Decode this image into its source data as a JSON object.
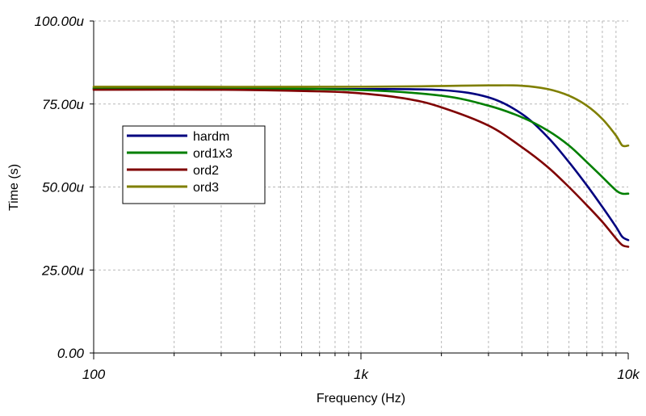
{
  "chart_data": {
    "type": "line",
    "title": "",
    "xlabel": "Frequency (Hz)",
    "ylabel": "Time (s)",
    "x_scale": "log",
    "xlim": [
      100,
      10000
    ],
    "ylim": [
      0,
      100
    ],
    "y_unit": "u",
    "grid": true,
    "legend_placement": "left",
    "x_ticks": [
      {
        "value": 100,
        "label": "100"
      },
      {
        "value": 1000,
        "label": "1k"
      },
      {
        "value": 10000,
        "label": "10k"
      }
    ],
    "y_ticks": [
      {
        "value": 0,
        "label": "0.00"
      },
      {
        "value": 25,
        "label": "25.00u"
      },
      {
        "value": 50,
        "label": "50.00u"
      },
      {
        "value": 75,
        "label": "75.00u"
      },
      {
        "value": 100,
        "label": "100.00u"
      }
    ],
    "series": [
      {
        "name": "hardm",
        "color": "#00007f",
        "points": [
          [
            100,
            79.6
          ],
          [
            300,
            79.6
          ],
          [
            1000,
            79.5
          ],
          [
            2000,
            79.2
          ],
          [
            3000,
            77
          ],
          [
            4000,
            72
          ],
          [
            5000,
            65
          ],
          [
            6000,
            57.5
          ],
          [
            7000,
            50.5
          ],
          [
            8000,
            44
          ],
          [
            9000,
            38
          ],
          [
            9500,
            35
          ],
          [
            10000,
            34
          ]
        ]
      },
      {
        "name": "ord1x3",
        "color": "#007f00",
        "points": [
          [
            100,
            79.8
          ],
          [
            300,
            79.8
          ],
          [
            1000,
            79.2
          ],
          [
            2000,
            77.5
          ],
          [
            3000,
            74.5
          ],
          [
            4000,
            71
          ],
          [
            5000,
            67
          ],
          [
            6000,
            62.5
          ],
          [
            7000,
            57.5
          ],
          [
            8000,
            53
          ],
          [
            9000,
            49
          ],
          [
            9500,
            48
          ],
          [
            10000,
            48
          ]
        ]
      },
      {
        "name": "ord2",
        "color": "#7f0000",
        "points": [
          [
            100,
            79.3
          ],
          [
            300,
            79.3
          ],
          [
            700,
            78.8
          ],
          [
            1000,
            78.2
          ],
          [
            1500,
            76.5
          ],
          [
            2000,
            74
          ],
          [
            3000,
            68.5
          ],
          [
            4000,
            62
          ],
          [
            5000,
            56
          ],
          [
            6000,
            50
          ],
          [
            7000,
            44.5
          ],
          [
            8000,
            39.5
          ],
          [
            9000,
            34.5
          ],
          [
            9500,
            32.5
          ],
          [
            10000,
            32
          ]
        ]
      },
      {
        "name": "ord3",
        "color": "#7f7f00",
        "points": [
          [
            100,
            80.2
          ],
          [
            1000,
            80.2
          ],
          [
            3000,
            80.6
          ],
          [
            4000,
            80.5
          ],
          [
            5000,
            79.5
          ],
          [
            6000,
            77.5
          ],
          [
            7000,
            74.5
          ],
          [
            8000,
            70.5
          ],
          [
            9000,
            65.5
          ],
          [
            9500,
            62.5
          ],
          [
            10000,
            62.5
          ]
        ]
      }
    ]
  }
}
